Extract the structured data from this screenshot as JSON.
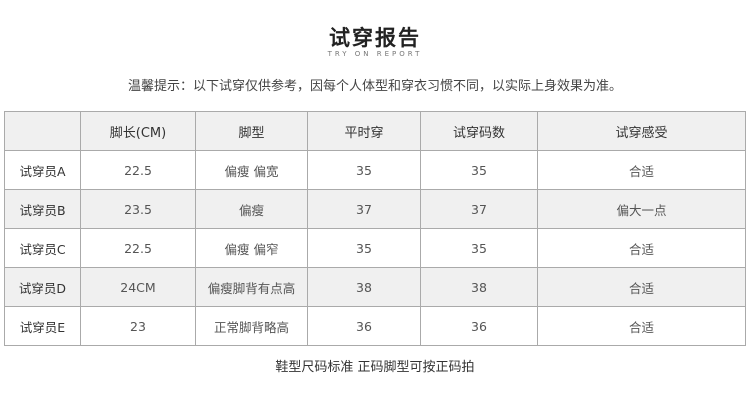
{
  "title": "试穿报告",
  "subtitle": "TRY ON REPORT",
  "tip": "温馨提示：以下试穿仅供参考，因每个人体型和穿衣习惯不同，以实际上身效果为准。",
  "table": {
    "headers": [
      "",
      "脚长(CM)",
      "脚型",
      "平时穿",
      "试穿码数",
      "试穿感受"
    ],
    "rows": [
      [
        "试穿员A",
        "22.5",
        "偏瘦 偏宽",
        "35",
        "35",
        "合适"
      ],
      [
        "试穿员B",
        "23.5",
        "偏瘦",
        "37",
        "37",
        "偏大一点"
      ],
      [
        "试穿员C",
        "22.5",
        "偏瘦 偏窄",
        "35",
        "35",
        "合适"
      ],
      [
        "试穿员D",
        "24CM",
        "偏瘦脚背有点高",
        "38",
        "38",
        "合适"
      ],
      [
        "试穿员E",
        "23",
        "正常脚背略高",
        "36",
        "36",
        "合适"
      ]
    ]
  },
  "footer": "鞋型尺码标准 正码脚型可按正码拍"
}
